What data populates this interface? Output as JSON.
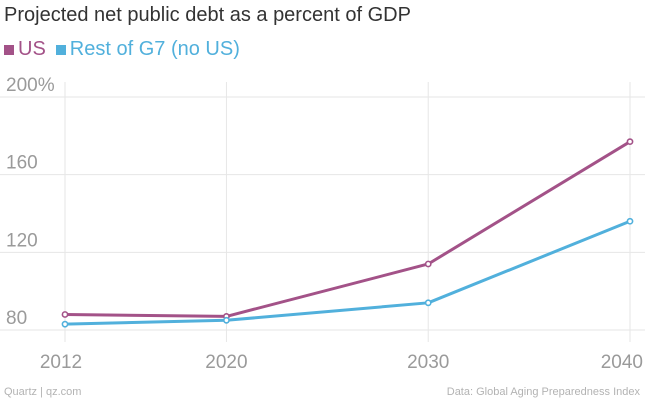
{
  "chart_data": {
    "type": "line",
    "title": "Projected net public debt as a percent of GDP",
    "x": [
      2012,
      2020,
      2030,
      2040
    ],
    "xlim": [
      2012,
      2040
    ],
    "ylim": [
      80,
      200
    ],
    "yticks": [
      80,
      120,
      160,
      200
    ],
    "ytick_labels": [
      "80",
      "120",
      "160",
      "200%"
    ],
    "xtick_labels": [
      "2012",
      "2020",
      "2030",
      "2040"
    ],
    "grid": true,
    "legend": "top-left",
    "series": [
      {
        "name": "US",
        "color": "#a35288",
        "values": [
          88,
          87,
          114,
          177
        ]
      },
      {
        "name": "Rest of G7 (no US)",
        "color": "#51b0dc",
        "values": [
          83,
          85,
          94,
          136
        ]
      }
    ]
  },
  "footer": {
    "source_left": "Quartz | qz.com",
    "source_right": "Data: Global Aging Preparedness Index"
  }
}
